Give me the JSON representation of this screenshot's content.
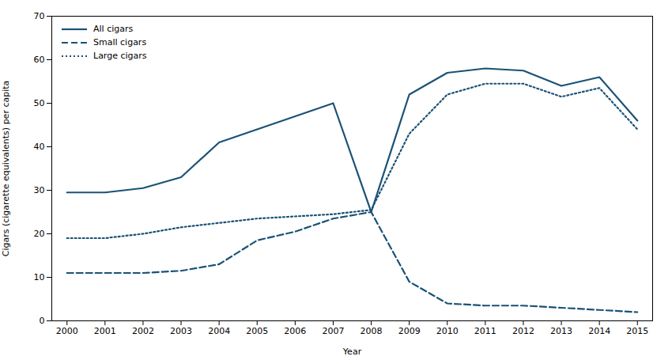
{
  "chart_data": {
    "type": "line",
    "x": [
      2000,
      2001,
      2002,
      2003,
      2004,
      2005,
      2006,
      2007,
      2008,
      2009,
      2010,
      2011,
      2012,
      2013,
      2014,
      2015
    ],
    "xlabel": "Year",
    "ylabel": "Cigars (cigarette equivalents) per capita",
    "xlim": [
      1999.6,
      2015.4
    ],
    "xticks": [
      2000,
      2001,
      2002,
      2003,
      2004,
      2005,
      2006,
      2007,
      2008,
      2009,
      2010,
      2011,
      2012,
      2013,
      2014,
      2015
    ],
    "ylim": [
      0,
      70
    ],
    "yticks": [
      0,
      10,
      20,
      30,
      40,
      50,
      60,
      70
    ],
    "grid": false,
    "legend": "upper left",
    "series": [
      {
        "name": "All cigars",
        "color": "#1a5276",
        "line_style": "solid",
        "values": [
          29.5,
          29.5,
          30.5,
          33.0,
          41.0,
          44.0,
          47.0,
          50.0,
          25.0,
          52.0,
          57.0,
          58.0,
          57.5,
          54.0,
          56.0,
          46.0
        ]
      },
      {
        "name": "Small cigars",
        "color": "#1a5276",
        "line_style": "dashed",
        "values": [
          11.0,
          11.0,
          11.0,
          11.5,
          13.0,
          18.5,
          20.5,
          23.5,
          25.0,
          9.0,
          4.0,
          3.5,
          3.5,
          3.0,
          2.5,
          2.0
        ]
      },
      {
        "name": "Large cigars",
        "color": "#1a5276",
        "line_style": "dotted",
        "values": [
          19.0,
          19.0,
          20.0,
          21.5,
          22.5,
          23.5,
          24.0,
          24.5,
          25.5,
          43.0,
          52.0,
          54.5,
          54.5,
          51.5,
          53.5,
          44.0
        ]
      }
    ]
  }
}
